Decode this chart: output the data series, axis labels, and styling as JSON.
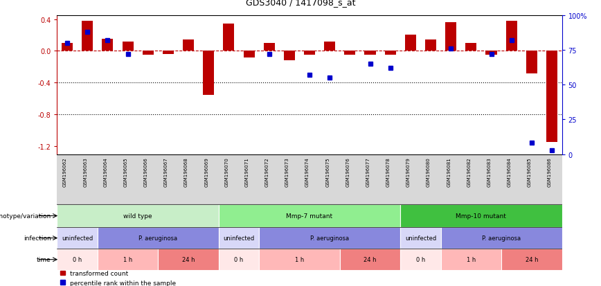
{
  "title": "GDS3040 / 1417098_s_at",
  "samples": [
    "GSM196062",
    "GSM196063",
    "GSM196064",
    "GSM196065",
    "GSM196066",
    "GSM196067",
    "GSM196068",
    "GSM196069",
    "GSM196070",
    "GSM196071",
    "GSM196072",
    "GSM196073",
    "GSM196074",
    "GSM196075",
    "GSM196076",
    "GSM196077",
    "GSM196078",
    "GSM196079",
    "GSM196080",
    "GSM196081",
    "GSM196082",
    "GSM196083",
    "GSM196084",
    "GSM196085",
    "GSM196086"
  ],
  "red_values": [
    0.1,
    0.38,
    0.15,
    0.12,
    -0.05,
    -0.04,
    0.14,
    -0.55,
    0.34,
    -0.08,
    0.1,
    -0.12,
    -0.05,
    0.12,
    -0.05,
    -0.05,
    -0.05,
    0.2,
    0.14,
    0.36,
    0.1,
    -0.05,
    0.38,
    -0.28,
    -1.15
  ],
  "blue_values_pct": [
    80,
    88,
    82,
    72,
    null,
    null,
    null,
    null,
    null,
    null,
    72,
    null,
    57,
    55,
    null,
    65,
    62,
    null,
    null,
    76,
    null,
    72,
    82,
    8,
    3
  ],
  "genotype_groups": [
    {
      "label": "wild type",
      "start": 0,
      "end": 7,
      "color": "#c8eec8"
    },
    {
      "label": "Mmp-7 mutant",
      "start": 8,
      "end": 16,
      "color": "#90ee90"
    },
    {
      "label": "Mmp-10 mutant",
      "start": 17,
      "end": 24,
      "color": "#40c040"
    }
  ],
  "infection_groups": [
    {
      "label": "uninfected",
      "start": 0,
      "end": 1,
      "color": "#d8d8f8"
    },
    {
      "label": "P. aeruginosa",
      "start": 2,
      "end": 7,
      "color": "#8888dd"
    },
    {
      "label": "uninfected",
      "start": 8,
      "end": 9,
      "color": "#d8d8f8"
    },
    {
      "label": "P. aeruginosa",
      "start": 10,
      "end": 16,
      "color": "#8888dd"
    },
    {
      "label": "uninfected",
      "start": 17,
      "end": 18,
      "color": "#d8d8f8"
    },
    {
      "label": "P. aeruginosa",
      "start": 19,
      "end": 24,
      "color": "#8888dd"
    }
  ],
  "time_groups": [
    {
      "label": "0 h",
      "start": 0,
      "end": 1,
      "color": "#ffe8e8"
    },
    {
      "label": "1 h",
      "start": 2,
      "end": 4,
      "color": "#ffb8b8"
    },
    {
      "label": "24 h",
      "start": 5,
      "end": 7,
      "color": "#f08080"
    },
    {
      "label": "0 h",
      "start": 8,
      "end": 9,
      "color": "#ffe8e8"
    },
    {
      "label": "1 h",
      "start": 10,
      "end": 13,
      "color": "#ffb8b8"
    },
    {
      "label": "24 h",
      "start": 14,
      "end": 16,
      "color": "#f08080"
    },
    {
      "label": "0 h",
      "start": 17,
      "end": 18,
      "color": "#ffe8e8"
    },
    {
      "label": "1 h",
      "start": 19,
      "end": 21,
      "color": "#ffb8b8"
    },
    {
      "label": "24 h",
      "start": 22,
      "end": 24,
      "color": "#f08080"
    }
  ],
  "ylim_left": [
    -1.3,
    0.45
  ],
  "ylim_right": [
    0,
    100
  ],
  "yticks_left": [
    0.4,
    0.0,
    -0.4,
    -0.8,
    -1.2
  ],
  "yticks_right": [
    100,
    75,
    50,
    25,
    0
  ],
  "red_color": "#bb0000",
  "blue_color": "#0000cc",
  "bar_width": 0.55,
  "legend_labels": [
    "transformed count",
    "percentile rank within the sample"
  ],
  "row_labels": [
    "genotype/variation",
    "infection",
    "time"
  ],
  "sample_label_bg": "#d8d8d8"
}
